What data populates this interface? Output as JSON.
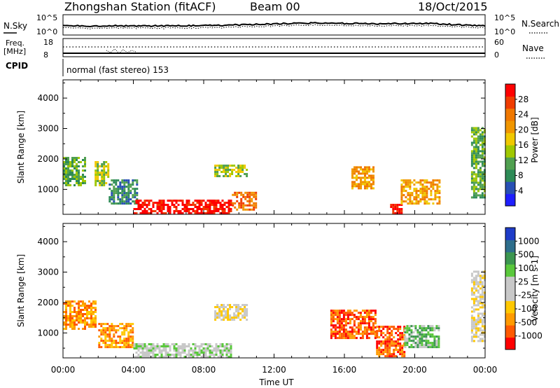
{
  "header": {
    "station": "Zhongshan Station (fitACF)",
    "beam": "Beam 00",
    "date": "18/Oct/2015"
  },
  "noise_panel": {
    "left_label": "N.Sky",
    "right_label": "N.Search",
    "left_ticks": [
      "10^5",
      "10^0"
    ],
    "right_ticks": [
      "10^5",
      "10^0"
    ]
  },
  "freq_panel": {
    "left_label_1": "Freq.",
    "left_label_2": "[MHz]",
    "right_label": "Nave",
    "left_ticks": [
      "18",
      "8"
    ],
    "right_ticks": [
      "60",
      "0"
    ]
  },
  "cpid": {
    "label": "CPID",
    "text": "normal (fast stereo) 153"
  },
  "x_axis": {
    "label": "Time UT",
    "ticks": [
      "00:00",
      "04:00",
      "08:00",
      "12:00",
      "16:00",
      "20:00",
      "00:00"
    ]
  },
  "colors": {
    "power": [
      "#1e1eff",
      "#2850b4",
      "#2e8b57",
      "#50a050",
      "#a0c800",
      "#f0c800",
      "#f09600",
      "#f07800",
      "#f03c00",
      "#ff0000"
    ],
    "velocity": [
      "#ff0000",
      "#ff5a00",
      "#ff9a00",
      "#ffc800",
      "#c8c8c8",
      "#c8c8c8",
      "#5ac83c",
      "#3c9650",
      "#2e6e8c",
      "#1e3cc8"
    ]
  },
  "chart_data": [
    {
      "type": "heatmap",
      "title": "Power",
      "ylabel": "Slant Range [km]",
      "xlabel": "",
      "ylim": [
        180,
        4600
      ],
      "yticks": [
        1000,
        2000,
        3000,
        4000
      ],
      "xlim": [
        0,
        24
      ],
      "colorbar": {
        "label": "Power [dB]",
        "ticks": [
          "4",
          "8",
          "12",
          "16",
          "20",
          "24",
          "28"
        ],
        "range": [
          0,
          32
        ]
      },
      "echo_regions": [
        {
          "t0": 0.0,
          "t1": 1.3,
          "r0": 1100,
          "r1": 2000,
          "level": 3
        },
        {
          "t0": 1.8,
          "t1": 2.6,
          "r0": 1100,
          "r1": 1900,
          "level": 4
        },
        {
          "t0": 2.6,
          "t1": 4.2,
          "r0": 500,
          "r1": 1300,
          "level": 2
        },
        {
          "t0": 4.0,
          "t1": 9.5,
          "r0": 180,
          "r1": 600,
          "level": 9
        },
        {
          "t0": 8.6,
          "t1": 10.4,
          "r0": 1400,
          "r1": 1800,
          "level": 4
        },
        {
          "t0": 9.6,
          "t1": 11.0,
          "r0": 300,
          "r1": 900,
          "level": 7
        },
        {
          "t0": 16.4,
          "t1": 17.6,
          "r0": 1000,
          "r1": 1700,
          "level": 6
        },
        {
          "t0": 18.6,
          "t1": 19.2,
          "r0": 180,
          "r1": 500,
          "level": 9
        },
        {
          "t0": 19.2,
          "t1": 21.4,
          "r0": 500,
          "r1": 1300,
          "level": 6
        },
        {
          "t0": 23.2,
          "t1": 24.0,
          "r0": 700,
          "r1": 3000,
          "level": 3
        }
      ]
    },
    {
      "type": "heatmap",
      "title": "Velocity",
      "ylabel": "Slant Range [km]",
      "xlabel": "Time UT",
      "ylim": [
        180,
        4600
      ],
      "yticks": [
        1000,
        2000,
        3000,
        4000
      ],
      "xlim": [
        0,
        24
      ],
      "colorbar": {
        "label": "Velocity [m s-1]",
        "ticks": [
          "1000",
          "500",
          "100",
          "25",
          "-25",
          "-100",
          "-500",
          "-1000"
        ]
      },
      "echo_regions": [
        {
          "t0": 0.0,
          "t1": 1.8,
          "r0": 1100,
          "r1": 2000,
          "level": 2
        },
        {
          "t0": 2.0,
          "t1": 4.0,
          "r0": 500,
          "r1": 1300,
          "level": 2
        },
        {
          "t0": 4.0,
          "t1": 9.5,
          "r0": 180,
          "r1": 600,
          "level": 5
        },
        {
          "t0": 8.6,
          "t1": 10.4,
          "r0": 1400,
          "r1": 1900,
          "level": 4
        },
        {
          "t0": 15.2,
          "t1": 17.8,
          "r0": 800,
          "r1": 1700,
          "level": 1
        },
        {
          "t0": 17.8,
          "t1": 19.4,
          "r0": 200,
          "r1": 1200,
          "level": 1
        },
        {
          "t0": 19.4,
          "t1": 21.4,
          "r0": 500,
          "r1": 1200,
          "level": 6
        },
        {
          "t0": 23.2,
          "t1": 24.0,
          "r0": 700,
          "r1": 3000,
          "level": 4
        }
      ]
    }
  ]
}
